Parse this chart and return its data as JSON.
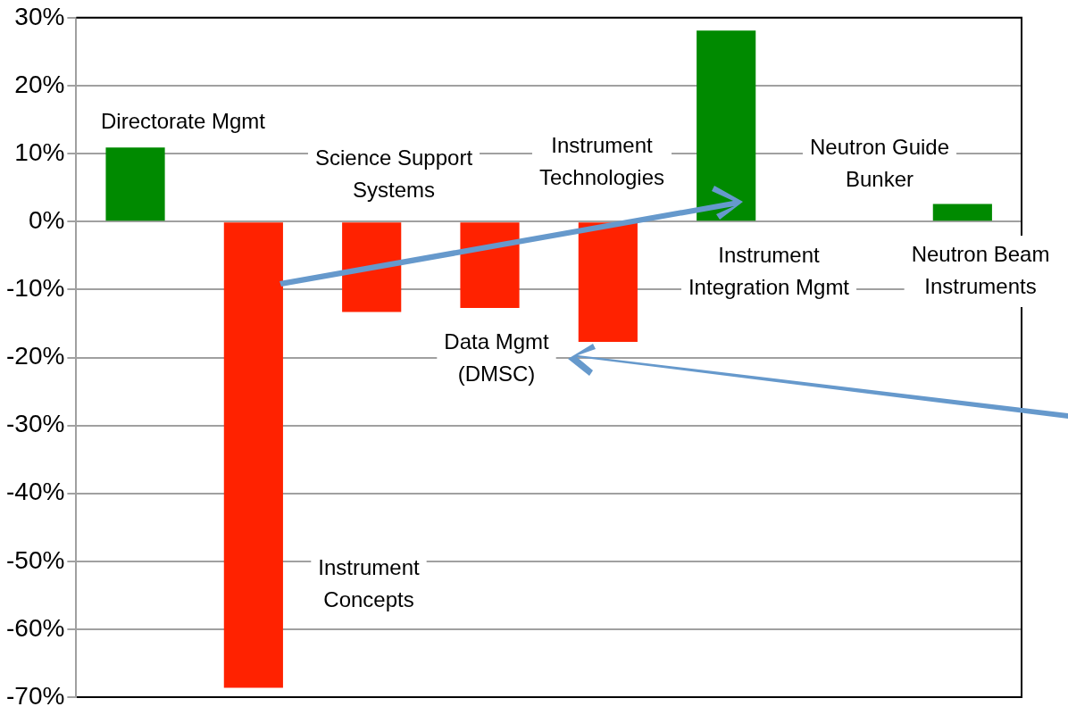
{
  "chart_data": {
    "type": "bar",
    "categories": [
      null,
      null,
      null,
      null,
      null,
      null,
      null,
      null
    ],
    "annotations": [
      "Directorate Mgmt",
      "Instrument Concepts",
      "Science Support Systems",
      "Data Mgmt (DMSC)",
      "Instrument Technologies",
      "Instrument Integration Mgmt",
      "Neutron Guide Bunker",
      "Neutron Beam Instruments"
    ],
    "values": [
      10.9,
      -68.6,
      -13.3,
      -12.7,
      -17.7,
      28.1,
      null,
      2.6
    ],
    "colors": [
      "#008a00",
      "#ff2200",
      "#ff2200",
      "#ff2200",
      "#ff2200",
      "#008a00",
      "#008a00",
      "#008a00"
    ],
    "ylim": [
      -70,
      30
    ],
    "yticks": [
      {
        "value": -70,
        "label": "-70%"
      },
      {
        "value": -60,
        "label": "-60%"
      },
      {
        "value": -50,
        "label": "-50%"
      },
      {
        "value": -40,
        "label": "-40%"
      },
      {
        "value": -30,
        "label": "-30%"
      },
      {
        "value": -20,
        "label": "-20%"
      },
      {
        "value": -10,
        "label": "-10%"
      },
      {
        "value": 0,
        "label": "0%"
      },
      {
        "value": 10,
        "label": "10%"
      },
      {
        "value": 20,
        "label": "20%"
      },
      {
        "value": 30,
        "label": "30%"
      }
    ],
    "grid": "y",
    "legend": false
  }
}
